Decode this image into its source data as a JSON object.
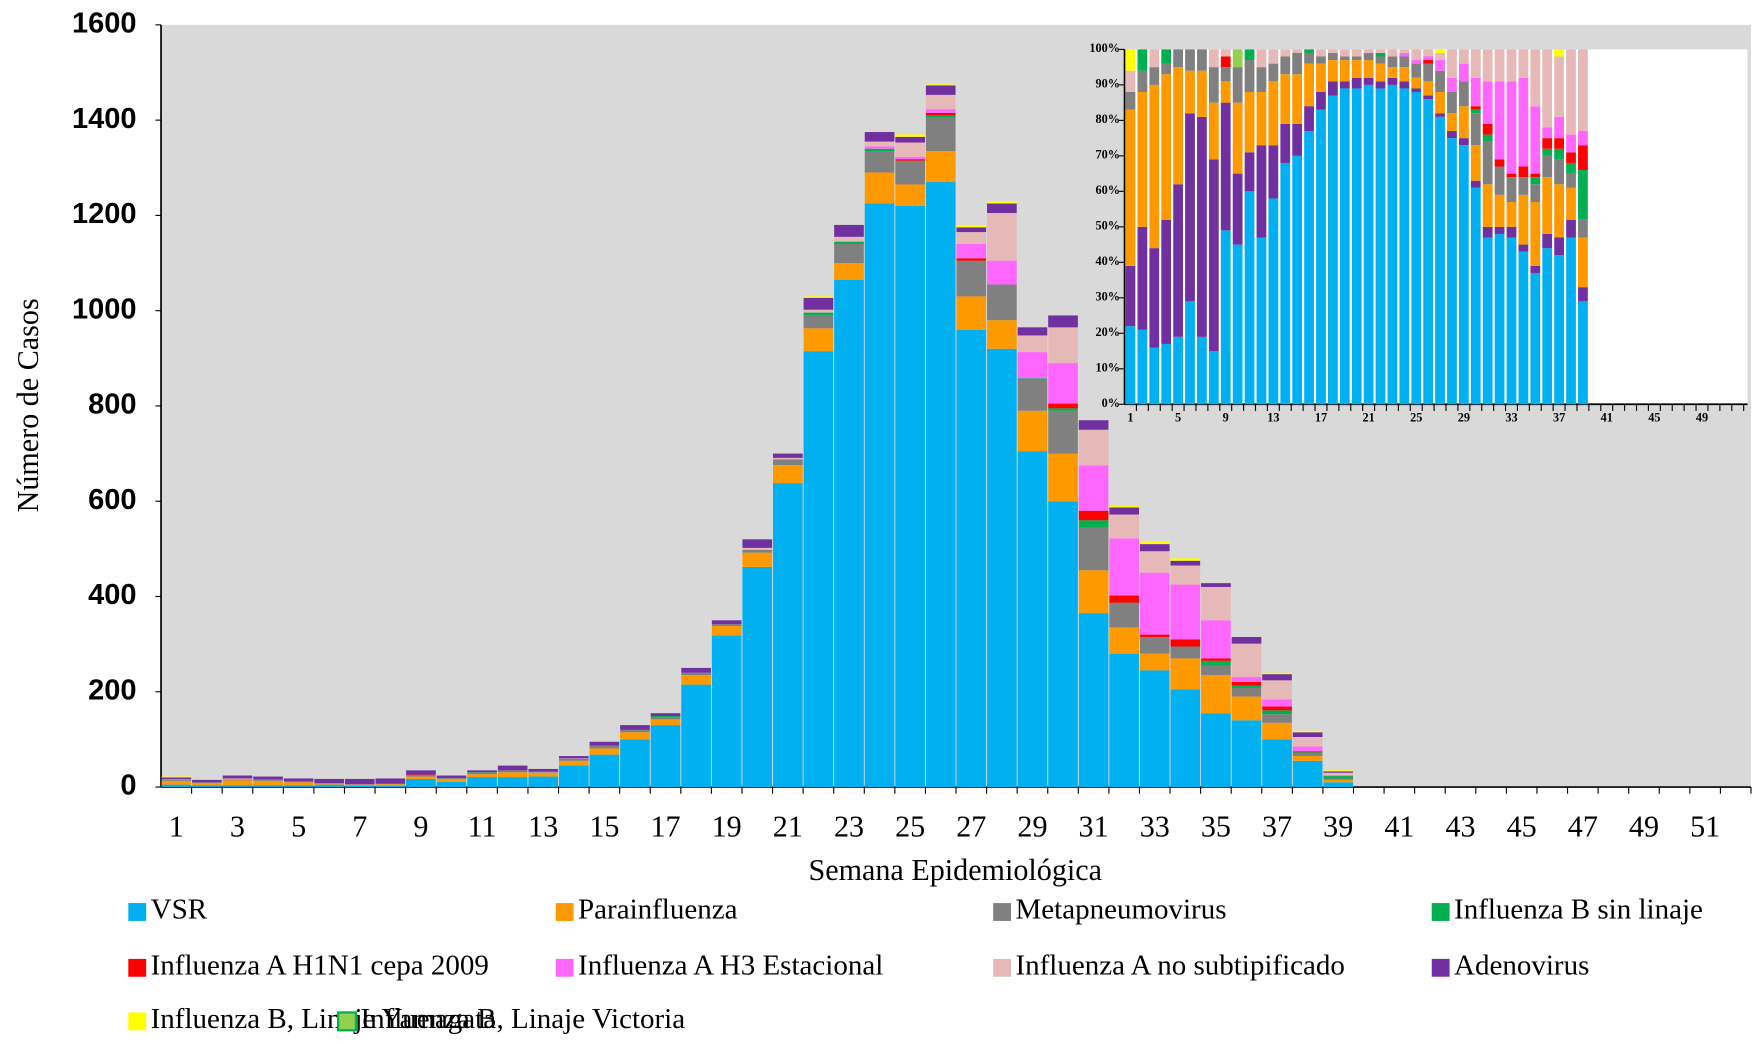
{
  "chart_data": {
    "type": "bar",
    "stacked": true,
    "x_label": "Semana Epidemiológica",
    "y_label": "Número de Casos",
    "categories": [
      "1",
      null,
      "3",
      null,
      "5",
      null,
      "7",
      null,
      "9",
      null,
      "11",
      null,
      "13",
      null,
      "15",
      null,
      "17",
      null,
      "19",
      null,
      "21",
      null,
      "23",
      null,
      "25",
      null,
      "27",
      null,
      "29",
      null,
      "31",
      null,
      "33",
      null,
      "35",
      null,
      "37",
      null,
      "39",
      null,
      "41",
      null,
      "43",
      null,
      "45",
      null,
      "47",
      null,
      "49",
      null,
      "51",
      null
    ],
    "ylim": [
      0,
      1600
    ],
    "yticks": [
      0,
      200,
      400,
      600,
      800,
      1000,
      1200,
      1400,
      1600
    ],
    "background": "#d9d9d9",
    "series": [
      {
        "name": "VSR",
        "color": "#00b0f0",
        "values": [
          5,
          4,
          4,
          4,
          4,
          5,
          3,
          3,
          17,
          11,
          21,
          21,
          22,
          45,
          68,
          100,
          130,
          215,
          318,
          462,
          638,
          915,
          1065,
          1225,
          1220,
          1270,
          960,
          920,
          705,
          600,
          365,
          280,
          245,
          205,
          155,
          140,
          100,
          55,
          10,
          null,
          null,
          null,
          null,
          null,
          null,
          null,
          null,
          null,
          null,
          null,
          null,
          null
        ]
      },
      {
        "name": "Parainfluenza",
        "color": "#ff9900",
        "values": [
          8,
          4,
          10,
          9,
          6,
          2,
          2,
          3,
          5,
          6,
          6,
          10,
          7,
          10,
          13,
          15,
          12,
          20,
          20,
          30,
          38,
          48,
          35,
          65,
          45,
          65,
          70,
          60,
          85,
          100,
          90,
          55,
          35,
          65,
          80,
          50,
          35,
          10,
          5,
          null,
          null,
          null,
          null,
          null,
          null,
          null,
          null,
          null,
          null,
          null,
          null,
          null
        ]
      },
      {
        "name": "Metapneumovirus",
        "color": "#808080",
        "values": [
          2,
          2,
          2,
          2,
          2,
          1,
          1,
          1,
          3,
          2,
          3,
          4,
          2,
          4,
          6,
          5,
          5,
          5,
          4,
          6,
          12,
          28,
          40,
          45,
          50,
          70,
          75,
          75,
          65,
          90,
          90,
          50,
          35,
          25,
          20,
          18,
          18,
          5,
          3,
          null,
          null,
          null,
          null,
          null,
          null,
          null,
          null,
          null,
          null,
          null,
          null,
          null
        ]
      },
      {
        "name": "Influenza B sin linaje",
        "color": "#00b050",
        "values": [
          0,
          0,
          0,
          1,
          0,
          0,
          0,
          0,
          0,
          0,
          1,
          0,
          0,
          0,
          0,
          0,
          2,
          0,
          0,
          0,
          0,
          5,
          5,
          5,
          0,
          5,
          0,
          0,
          3,
          5,
          15,
          2,
          0,
          0,
          10,
          5,
          8,
          3,
          5,
          null,
          null,
          null,
          null,
          null,
          null,
          null,
          null,
          null,
          null,
          null,
          null,
          null
        ]
      },
      {
        "name": "Influenza A H1N1 cepa 2009",
        "color": "#ff0000",
        "values": [
          0,
          0,
          0,
          0,
          0,
          0,
          0,
          0,
          1,
          0,
          0,
          0,
          0,
          0,
          0,
          0,
          0,
          0,
          0,
          0,
          0,
          0,
          0,
          0,
          3,
          5,
          5,
          0,
          0,
          10,
          20,
          15,
          5,
          15,
          5,
          8,
          8,
          2,
          0,
          null,
          null,
          null,
          null,
          null,
          null,
          null,
          null,
          null,
          null,
          null,
          null,
          null
        ]
      },
      {
        "name": "Influenza A H3 Estacional",
        "color": "#ff66ff",
        "values": [
          0,
          0,
          0,
          0,
          0,
          0,
          0,
          0,
          0,
          0,
          0,
          0,
          0,
          0,
          0,
          0,
          0,
          0,
          0,
          0,
          0,
          0,
          0,
          5,
          5,
          8,
          30,
          50,
          55,
          85,
          95,
          120,
          130,
          115,
          80,
          10,
          15,
          10,
          2,
          null,
          null,
          null,
          null,
          null,
          null,
          null,
          null,
          null,
          null,
          null,
          null,
          null
        ]
      },
      {
        "name": "Influenza A no subtipificado",
        "color": "#e6b9b8",
        "values": [
          1,
          0,
          2,
          0,
          0,
          0,
          0,
          0,
          0,
          0,
          0,
          0,
          1,
          1,
          0,
          0,
          0,
          0,
          0,
          4,
          3,
          6,
          10,
          10,
          30,
          30,
          25,
          100,
          35,
          75,
          75,
          50,
          45,
          40,
          70,
          70,
          40,
          20,
          5,
          null,
          null,
          null,
          null,
          null,
          null,
          null,
          null,
          null,
          null,
          null,
          null,
          null
        ]
      },
      {
        "name": "Adenovirus",
        "color": "#7030a0",
        "values": [
          4,
          5,
          6,
          6,
          6,
          9,
          11,
          11,
          9,
          5,
          4,
          10,
          6,
          5,
          8,
          10,
          6,
          10,
          8,
          18,
          9,
          25,
          25,
          20,
          12,
          20,
          10,
          20,
          17,
          25,
          20,
          15,
          15,
          10,
          8,
          14,
          13,
          10,
          3,
          null,
          null,
          null,
          null,
          null,
          null,
          null,
          null,
          null,
          null,
          null,
          null,
          null
        ]
      },
      {
        "name": "Influenza B, Linaje Yamagata",
        "color": "#ffff00",
        "values": [
          2,
          0,
          0,
          0,
          0,
          0,
          0,
          0,
          0,
          0,
          0,
          0,
          0,
          0,
          0,
          0,
          0,
          0,
          0,
          0,
          0,
          3,
          0,
          0,
          5,
          2,
          5,
          5,
          0,
          0,
          0,
          3,
          5,
          5,
          0,
          0,
          3,
          3,
          2,
          null,
          null,
          null,
          null,
          null,
          null,
          null,
          null,
          null,
          null,
          null,
          null,
          null
        ]
      },
      {
        "name": "Influenza B, Linaje Victoria",
        "color": "#92d050",
        "edgecolor": "#00b050",
        "values": [
          0,
          0,
          1,
          0,
          0,
          0,
          0,
          0,
          0,
          1,
          0,
          0,
          0,
          0,
          0,
          0,
          0,
          0,
          0,
          0,
          0,
          0,
          0,
          0,
          0,
          0,
          0,
          0,
          0,
          0,
          0,
          0,
          0,
          0,
          0,
          0,
          0,
          0,
          0,
          null,
          null,
          null,
          null,
          null,
          null,
          null,
          null,
          null,
          null,
          null,
          null,
          null
        ]
      }
    ],
    "inset": {
      "type": "bar",
      "stacked": true,
      "categories": [
        "1",
        null,
        null,
        null,
        "5",
        null,
        null,
        null,
        "9",
        null,
        null,
        null,
        "13",
        null,
        null,
        null,
        "17",
        null,
        null,
        null,
        "21",
        null,
        null,
        null,
        "25",
        null,
        null,
        null,
        "29",
        null,
        null,
        null,
        "33",
        null,
        null,
        null,
        "37",
        null,
        null,
        null,
        "41",
        null,
        null,
        null,
        "45",
        null,
        null,
        null,
        "49",
        null,
        null,
        null
      ],
      "ylim": [
        0,
        100
      ],
      "yticks": [
        {
          "value": 0,
          "label": "0%"
        },
        {
          "value": 10,
          "label": "10%"
        },
        {
          "value": 20,
          "label": "20%"
        },
        {
          "value": 30,
          "label": "30%"
        },
        {
          "value": 40,
          "label": "40%"
        },
        {
          "value": 50,
          "label": "50%"
        },
        {
          "value": 60,
          "label": "60%"
        },
        {
          "value": 70,
          "label": "70%"
        },
        {
          "value": 80,
          "label": "80%"
        },
        {
          "value": 90,
          "label": "90%"
        },
        {
          "value": 100,
          "label": "100%"
        }
      ],
      "background": "#ffffff",
      "series": [
        {
          "color": "#00b0f0",
          "values": [
            22,
            21,
            16,
            17,
            19,
            29,
            19,
            15,
            49,
            45,
            60,
            47,
            58,
            68,
            70,
            77,
            83,
            87,
            89,
            89,
            90,
            89,
            90,
            89,
            88,
            86,
            81,
            75,
            73,
            61,
            47,
            48,
            47,
            43,
            37,
            44,
            42,
            47,
            29
          ]
        },
        {
          "color": "#7030a0",
          "values": [
            17,
            29,
            28,
            35,
            43,
            53,
            62,
            54,
            36,
            20,
            11,
            26,
            15,
            11,
            9,
            7,
            5,
            4,
            2,
            3,
            2,
            2,
            2,
            2,
            1,
            1,
            1,
            2,
            2,
            2,
            3,
            2,
            3,
            2,
            2,
            4,
            5,
            5,
            4
          ]
        },
        {
          "color": "#ff9900",
          "values": [
            44,
            38,
            46,
            41,
            33,
            12,
            13,
            16,
            6,
            20,
            17,
            15,
            18,
            14,
            14,
            12,
            8,
            6,
            6,
            5,
            5,
            5,
            3,
            4,
            3,
            4,
            6,
            5,
            9,
            10,
            12,
            9,
            7,
            14,
            18,
            16,
            15,
            9,
            14
          ]
        },
        {
          "color": "#808080",
          "values": [
            5,
            6,
            5,
            3,
            5,
            6,
            6,
            10,
            4,
            10,
            9,
            7,
            5,
            5,
            6,
            3,
            2,
            2,
            1,
            1,
            2,
            2,
            3,
            3,
            4,
            5,
            6,
            6,
            7,
            9,
            12,
            8,
            7,
            5,
            5,
            6,
            7,
            4,
            5
          ]
        },
        {
          "color": "#00b050",
          "values": [
            0,
            6,
            0,
            4,
            0,
            0,
            0,
            0,
            0,
            0,
            3,
            0,
            0,
            0,
            0,
            1,
            0,
            0,
            0,
            0,
            0,
            1,
            0,
            0,
            0,
            0,
            0,
            0,
            0,
            1,
            2,
            0,
            0,
            0,
            2,
            2,
            3,
            3,
            14
          ]
        },
        {
          "color": "#ff0000",
          "values": [
            0,
            0,
            0,
            0,
            0,
            0,
            0,
            0,
            3,
            0,
            0,
            0,
            0,
            0,
            0,
            0,
            0,
            0,
            0,
            0,
            0,
            0,
            0,
            0,
            0,
            1,
            0,
            0,
            0,
            1,
            3,
            2,
            1,
            3,
            1,
            3,
            3,
            3,
            7
          ]
        },
        {
          "color": "#ff66ff",
          "values": [
            0,
            0,
            0,
            0,
            0,
            0,
            0,
            0,
            0,
            0,
            0,
            0,
            0,
            0,
            0,
            0,
            0,
            0,
            0,
            0,
            0,
            0,
            0,
            1,
            1,
            1,
            3,
            4,
            5,
            8,
            12,
            22,
            26,
            25,
            19,
            3,
            6,
            5,
            4
          ]
        },
        {
          "color": "#e6b9b8",
          "values": [
            6,
            0,
            5,
            0,
            0,
            0,
            0,
            5,
            2,
            0,
            0,
            5,
            4,
            2,
            1,
            0,
            2,
            1,
            2,
            2,
            1,
            1,
            2,
            1,
            3,
            2,
            2,
            8,
            4,
            8,
            9,
            9,
            9,
            8,
            16,
            22,
            17,
            24,
            23
          ]
        },
        {
          "color": "#92d050",
          "values": [
            0,
            0,
            0,
            0,
            0,
            0,
            0,
            0,
            0,
            5,
            0,
            0,
            0,
            0,
            0,
            0,
            0,
            0,
            0,
            0,
            0,
            0,
            0,
            0,
            0,
            0,
            0,
            0,
            0,
            0,
            0,
            0,
            0,
            0,
            0,
            0,
            0,
            0,
            0
          ]
        },
        {
          "color": "#ffff00",
          "values": [
            6,
            0,
            0,
            0,
            0,
            0,
            0,
            0,
            0,
            0,
            0,
            0,
            0,
            0,
            0,
            0,
            0,
            0,
            0,
            0,
            0,
            0,
            0,
            0,
            0,
            0,
            1,
            0,
            0,
            0,
            0,
            0,
            0,
            0,
            0,
            0,
            2,
            0,
            0
          ]
        }
      ]
    }
  }
}
